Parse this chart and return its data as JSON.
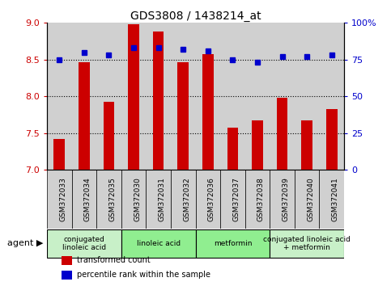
{
  "title": "GDS3808 / 1438214_at",
  "samples": [
    "GSM372033",
    "GSM372034",
    "GSM372035",
    "GSM372030",
    "GSM372031",
    "GSM372032",
    "GSM372036",
    "GSM372037",
    "GSM372038",
    "GSM372039",
    "GSM372040",
    "GSM372041"
  ],
  "bar_values": [
    7.42,
    8.47,
    7.93,
    8.98,
    8.88,
    8.47,
    8.57,
    7.57,
    7.67,
    7.98,
    7.67,
    7.83
  ],
  "dot_values": [
    75,
    80,
    78,
    83,
    83,
    82,
    81,
    75,
    73,
    77,
    77,
    78
  ],
  "bar_bottom": 7.0,
  "ylim_left": [
    7.0,
    9.0
  ],
  "ylim_right": [
    0,
    100
  ],
  "yticks_left": [
    7.0,
    7.5,
    8.0,
    8.5,
    9.0
  ],
  "yticks_right": [
    0,
    25,
    50,
    75,
    100
  ],
  "ytick_labels_right": [
    "0",
    "25",
    "50",
    "75",
    "100%"
  ],
  "hlines": [
    7.5,
    8.0,
    8.5
  ],
  "bar_color": "#cc0000",
  "dot_color": "#0000cc",
  "sample_bg_color": "#d0d0d0",
  "agent_groups": [
    {
      "label": "conjugated\nlinoleic acid",
      "start": 0,
      "end": 3,
      "color": "#c8f0c8"
    },
    {
      "label": "linoleic acid",
      "start": 3,
      "end": 6,
      "color": "#90ee90"
    },
    {
      "label": "metformin",
      "start": 6,
      "end": 9,
      "color": "#90ee90"
    },
    {
      "label": "conjugated linoleic acid\n+ metformin",
      "start": 9,
      "end": 12,
      "color": "#c8f0c8"
    }
  ],
  "legend_items": [
    {
      "color": "#cc0000",
      "label": "transformed count"
    },
    {
      "color": "#0000cc",
      "label": "percentile rank within the sample"
    }
  ],
  "agent_label": "agent",
  "white_bg": "#ffffff"
}
